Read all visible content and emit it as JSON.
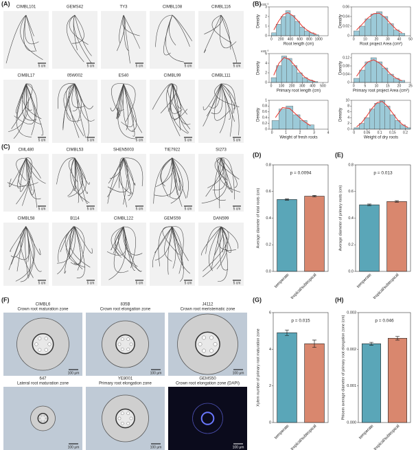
{
  "panels": {
    "A": "(A)",
    "B": "(B)",
    "C": "(C)",
    "D": "(D)",
    "E": "(E)",
    "F": "(F)",
    "G": "(G)",
    "H": "(H)"
  },
  "root_images": {
    "A": [
      "CIMBL101",
      "GEMS42",
      "TY3",
      "CIMBL108",
      "CIMBL116",
      "CIMBL17",
      "05W002",
      "ES40",
      "CIMBL99",
      "CIMBL111"
    ],
    "C": [
      "CML480",
      "CIMBL53",
      "SHEN5003",
      "TIE7922",
      "SI273",
      "CIMBL58",
      "B114",
      "CIMBL122",
      "GEMS59",
      "DAN599"
    ],
    "scale": "5 cm"
  },
  "sections": {
    "items": [
      {
        "name": "CIMBL6",
        "zone": "Crown root maturation zone"
      },
      {
        "name": "835B",
        "zone": "Crown root elongation zone"
      },
      {
        "name": "J4112",
        "zone": "Crown root meristematic zone"
      },
      {
        "name": "647",
        "zone": "Lateral root maturation zone"
      },
      {
        "name": "YE8001",
        "zone": "Primary root elongation zone"
      },
      {
        "name": "GEMS50",
        "zone": "Crown root elongation zone (DAPI)"
      }
    ],
    "scale": "100 μm"
  },
  "chart_data": [
    {
      "type": "histogram",
      "xlabel": "Root length (cm)",
      "ylabel": "Density",
      "y_multiplier": "x10⁻³",
      "color": "#9ccad8",
      "fit_color": "#e8322b",
      "bins": [
        0,
        100,
        200,
        300,
        400,
        500,
        600,
        700,
        800,
        900,
        1000
      ],
      "values": [
        0.3,
        1.2,
        2.0,
        2.6,
        2.1,
        1.5,
        0.9,
        0.5,
        0.3,
        0.1
      ],
      "fit": [
        0.6,
        1.5,
        2.2,
        2.4,
        2.1,
        1.6,
        1.0,
        0.6,
        0.3,
        0.15
      ],
      "xlim": [
        -50,
        1200
      ],
      "xticks": [
        0,
        200,
        400,
        600,
        800,
        1000
      ],
      "ylim": [
        0,
        3
      ],
      "yticks": [
        0,
        1,
        2,
        3
      ]
    },
    {
      "type": "histogram",
      "xlabel": "Root project Area (cm²)",
      "ylabel": "Density",
      "color": "#9ccad8",
      "fit_color": "#e8322b",
      "bins": [
        0,
        5,
        10,
        15,
        20,
        25,
        30,
        35,
        40,
        45
      ],
      "values": [
        0.01,
        0.02,
        0.035,
        0.045,
        0.05,
        0.04,
        0.025,
        0.012,
        0.005
      ],
      "fit": [
        0.012,
        0.024,
        0.037,
        0.046,
        0.047,
        0.038,
        0.025,
        0.013,
        0.006
      ],
      "xlim": [
        -2,
        50
      ],
      "xticks": [
        0,
        10,
        20,
        30,
        40,
        50
      ],
      "ylim": [
        0,
        0.06
      ],
      "yticks": [
        0,
        0.02,
        0.04,
        0.06
      ]
    },
    {
      "type": "histogram",
      "xlabel": "Primary root length (cm)",
      "ylabel": "Density",
      "y_multiplier": "x10⁻³",
      "color": "#9ccad8",
      "fit_color": "#e8322b",
      "bins": [
        0,
        50,
        100,
        150,
        200,
        250,
        300,
        350,
        400,
        450
      ],
      "values": [
        1,
        3.5,
        5.5,
        5,
        3.5,
        2,
        1,
        0.5,
        0.2
      ],
      "fit": [
        1.5,
        4,
        5.2,
        4.8,
        3.6,
        2.2,
        1.1,
        0.5,
        0.2
      ],
      "xlim": [
        -20,
        550
      ],
      "xticks": [
        0,
        100,
        200,
        300,
        400,
        500
      ],
      "ylim": [
        0,
        6
      ],
      "yticks": [
        0,
        2,
        4,
        6
      ]
    },
    {
      "type": "histogram",
      "xlabel": "Primary root project Area (cm²)",
      "ylabel": "Density",
      "color": "#9ccad8",
      "fit_color": "#e8322b",
      "bins": [
        0,
        2.5,
        5,
        7.5,
        10,
        12.5,
        15,
        17.5,
        20,
        22.5
      ],
      "values": [
        0.02,
        0.06,
        0.1,
        0.12,
        0.1,
        0.07,
        0.04,
        0.02,
        0.01
      ],
      "fit": [
        0.03,
        0.07,
        0.1,
        0.11,
        0.095,
        0.07,
        0.04,
        0.02,
        0.008
      ],
      "xlim": [
        -1,
        25
      ],
      "xticks": [
        0,
        5,
        10,
        15,
        20,
        25
      ],
      "ylim": [
        0,
        0.14
      ],
      "yticks": [
        0,
        0.04,
        0.08,
        0.12
      ]
    },
    {
      "type": "histogram",
      "xlabel": "Weight of fresh roots",
      "ylabel": "Density",
      "color": "#9ccad8",
      "fit_color": "#e8322b",
      "bins": [
        0,
        0.5,
        1,
        1.5,
        2,
        2.5,
        3
      ],
      "values": [
        0.3,
        0.7,
        0.8,
        0.5,
        0.3,
        0.15
      ],
      "fit": [
        0.4,
        0.75,
        0.72,
        0.5,
        0.28,
        0.12
      ],
      "xlim": [
        -0.2,
        4
      ],
      "xticks": [
        0,
        1,
        2,
        3,
        4
      ],
      "ylim": [
        0,
        1
      ],
      "yticks": [
        0,
        0.2,
        0.4,
        0.6,
        0.8,
        1
      ]
    },
    {
      "type": "histogram",
      "xlabel": "Weight of dry roots",
      "ylabel": "Density",
      "color": "#9ccad8",
      "fit_color": "#e8322b",
      "bins": [
        0,
        0.02,
        0.04,
        0.06,
        0.08,
        0.1,
        0.12,
        0.14,
        0.16,
        0.18,
        0.2,
        0.22
      ],
      "values": [
        0.5,
        2,
        4,
        7,
        9,
        10,
        8,
        5,
        3,
        1.5,
        0.5
      ],
      "fit": [
        0.8,
        2.3,
        4.6,
        7.2,
        9.2,
        9.6,
        8.0,
        5.6,
        3.2,
        1.5,
        0.6
      ],
      "xlim": [
        -0.01,
        0.22
      ],
      "xticks": [
        0,
        0.05,
        0.1,
        0.15,
        0.2
      ],
      "ylim": [
        0,
        10
      ],
      "yticks": [
        0,
        2,
        4,
        6,
        8,
        10
      ]
    },
    {
      "type": "bar",
      "categories": [
        "temperate",
        "tropical/subtropical"
      ],
      "colors": [
        "#5aa6b8",
        "#d9876e"
      ],
      "values": [
        0.54,
        0.565
      ],
      "errors": [
        0.005,
        0.006
      ],
      "ylabel": "Average diameter of total roots (cm)",
      "annotation": "p = 0.0094",
      "ylim": [
        0,
        0.8
      ],
      "yticks": [
        {
          "value": 0,
          "label": "0.0"
        },
        0.2,
        0.4,
        0.6,
        0.8
      ]
    },
    {
      "type": "bar",
      "categories": [
        "temperate",
        "tropical/subtropical"
      ],
      "colors": [
        "#5aa6b8",
        "#d9876e"
      ],
      "values": [
        0.5,
        0.525
      ],
      "errors": [
        0.006,
        0.006
      ],
      "ylabel": "Average diameter of primary roots (cm)",
      "annotation": "p = 0.013",
      "ylim": [
        0,
        0.8
      ],
      "yticks": [
        {
          "value": 0,
          "label": "0.0"
        },
        0.2,
        0.4,
        0.6,
        0.8
      ]
    },
    {
      "type": "bar",
      "categories": [
        "temperate",
        "tropical/subtropical"
      ],
      "colors": [
        "#5aa6b8",
        "#d9876e"
      ],
      "values": [
        4.9,
        4.3
      ],
      "errors": [
        0.15,
        0.2
      ],
      "ylabel": "Xylem number of primary root maturation zone",
      "annotation": "p = 0.015",
      "ylim": [
        0,
        6
      ],
      "yticks": [
        0,
        2,
        4,
        6
      ]
    },
    {
      "type": "bar",
      "categories": [
        "temperate",
        "tropical/subtropical"
      ],
      "colors": [
        "#5aa6b8",
        "#d9876e"
      ],
      "values": [
        0.00215,
        0.0023
      ],
      "errors": [
        4e-05,
        5e-05
      ],
      "ylabel": "Phloem average diameter of primary root elongation zone (cm)",
      "annotation": "p = 0.046",
      "ylim": [
        0,
        0.003
      ],
      "yticks": [
        {
          "value": 0,
          "label": "0.000"
        },
        0.001,
        0.002,
        0.003
      ]
    }
  ]
}
